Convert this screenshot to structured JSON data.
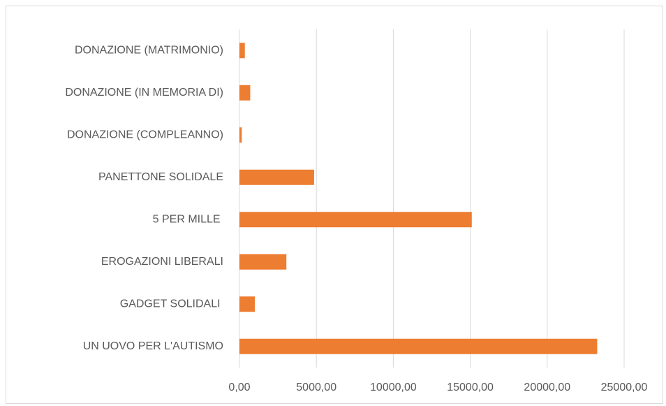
{
  "chart_data": {
    "type": "barh",
    "categories": [
      "DONAZIONE (MATRIMONIO)",
      "DONAZIONE (IN MEMORIA DI)",
      "DONAZIONE (COMPLEANNO)",
      "PANETTONE SOLIDALE",
      "5 PER MILLE ",
      "EROGAZIONI LIBERALI",
      "GADGET SOLIDALI ",
      "UN UOVO PER L'AUTISMO"
    ],
    "values": [
      350,
      700,
      150,
      4850,
      15100,
      3050,
      1000,
      23250
    ],
    "color": "#ed7d31",
    "xlim": [
      0,
      25000
    ],
    "xticks": [
      {
        "value": 0,
        "label": "0,00"
      },
      {
        "value": 5000,
        "label": "5000,00"
      },
      {
        "value": 10000,
        "label": "10000,00"
      },
      {
        "value": 15000,
        "label": "15000,00"
      },
      {
        "value": 20000,
        "label": "20000,00"
      },
      {
        "value": 25000,
        "label": "25000,00"
      }
    ],
    "grid": true
  }
}
